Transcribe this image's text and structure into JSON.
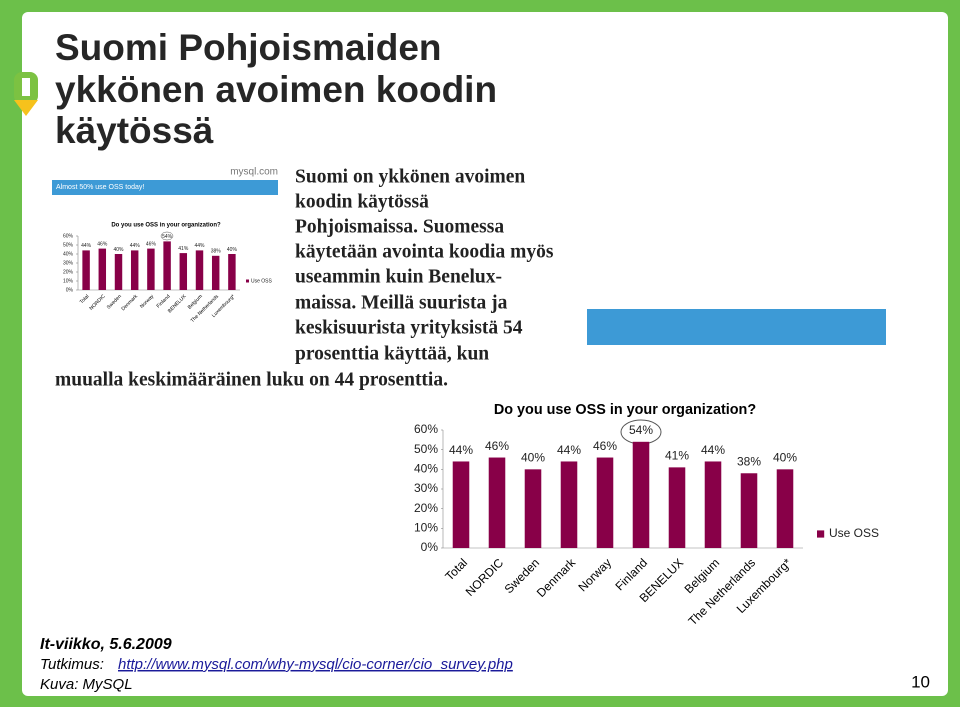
{
  "header": {
    "title_lines": [
      "Suomi Pohjoismaiden",
      "ykkönen avoimen koodin",
      "käytössä"
    ]
  },
  "thumbnail": {
    "source": "mysql.com",
    "banner": "Almost 50% use OSS today!"
  },
  "body": {
    "lines": [
      "Suomi on ykkönen avoimen",
      "koodin käytössä",
      "Pohjoismaissa. Suomessa",
      "käytetään avointa koodia myös",
      "useammin kuin Benelux-",
      "maissa. Meillä suurista ja",
      "keskisuurista yrityksistä 54",
      "prosenttia käyttää, kun",
      "muualla keskimääräinen luku on 44 prosenttia."
    ]
  },
  "chart_data": {
    "type": "bar",
    "title": "Do you use OSS in your organization?",
    "categories": [
      "Total",
      "NORDIC",
      "Sweden",
      "Denmark",
      "Norway",
      "Finland",
      "BENELUX",
      "Belgium",
      "The Netherlands",
      "Luxembourg*"
    ],
    "series": [
      {
        "name": "Use OSS",
        "color": "#880048",
        "values": [
          44,
          46,
          40,
          44,
          46,
          54,
          41,
          44,
          38,
          40
        ],
        "value_labels": [
          "44%",
          "46%",
          "40%",
          "44%",
          "46%",
          "54%",
          "41%",
          "44%",
          "38%",
          "40%"
        ]
      }
    ],
    "ylim": [
      0,
      60
    ],
    "yticks": [
      {
        "value": 0,
        "label": "0%"
      },
      {
        "value": 10,
        "label": "10%"
      },
      {
        "value": 20,
        "label": "20%"
      },
      {
        "value": 30,
        "label": "30%"
      },
      {
        "value": 40,
        "label": "40%"
      },
      {
        "value": 50,
        "label": "50%"
      },
      {
        "value": 60,
        "label": "60%"
      }
    ],
    "legend": "right"
  },
  "footer": {
    "source_line": "It-viikko, 5.6.2009",
    "study_label": "Tutkimus:",
    "study_url": "http://www.mysql.com/why-mysql/cio-corner/cio_survey.php",
    "image_credit": "Kuva: MySQL",
    "page_number": "10"
  }
}
